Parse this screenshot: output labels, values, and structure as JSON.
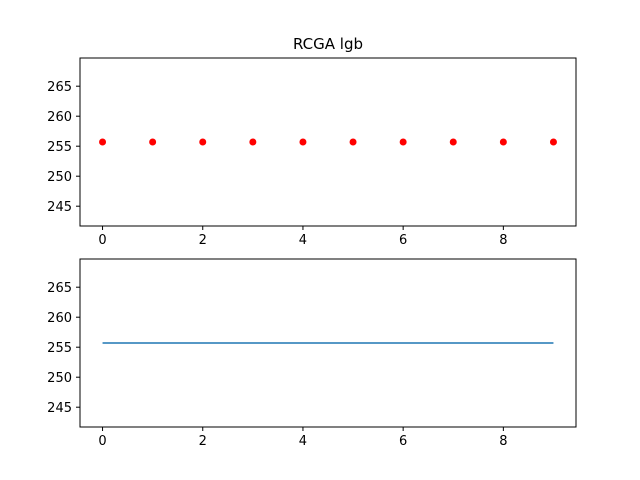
{
  "chart_data": [
    {
      "type": "scatter",
      "title": "RCGA lgb",
      "xlabel": "",
      "ylabel": "",
      "x": [
        0,
        1,
        2,
        3,
        4,
        5,
        6,
        7,
        8,
        9
      ],
      "y": [
        255.7,
        255.7,
        255.7,
        255.7,
        255.7,
        255.7,
        255.7,
        255.7,
        255.7,
        255.7
      ],
      "xlim": [
        -0.45,
        9.45
      ],
      "ylim": [
        241.7,
        269.7
      ],
      "xticks": [
        0,
        2,
        4,
        6,
        8
      ],
      "yticks": [
        245,
        250,
        255,
        260,
        265
      ],
      "marker_color": "#ff0000",
      "grid": false
    },
    {
      "type": "line",
      "title": "",
      "xlabel": "",
      "ylabel": "",
      "x": [
        0,
        1,
        2,
        3,
        4,
        5,
        6,
        7,
        8,
        9
      ],
      "y": [
        255.7,
        255.7,
        255.7,
        255.7,
        255.7,
        255.7,
        255.7,
        255.7,
        255.7,
        255.7
      ],
      "xlim": [
        -0.45,
        9.45
      ],
      "ylim": [
        241.7,
        269.7
      ],
      "xticks": [
        0,
        2,
        4,
        6,
        8
      ],
      "yticks": [
        245,
        250,
        255,
        260,
        265
      ],
      "line_color": "#1f77b4",
      "grid": false
    }
  ]
}
